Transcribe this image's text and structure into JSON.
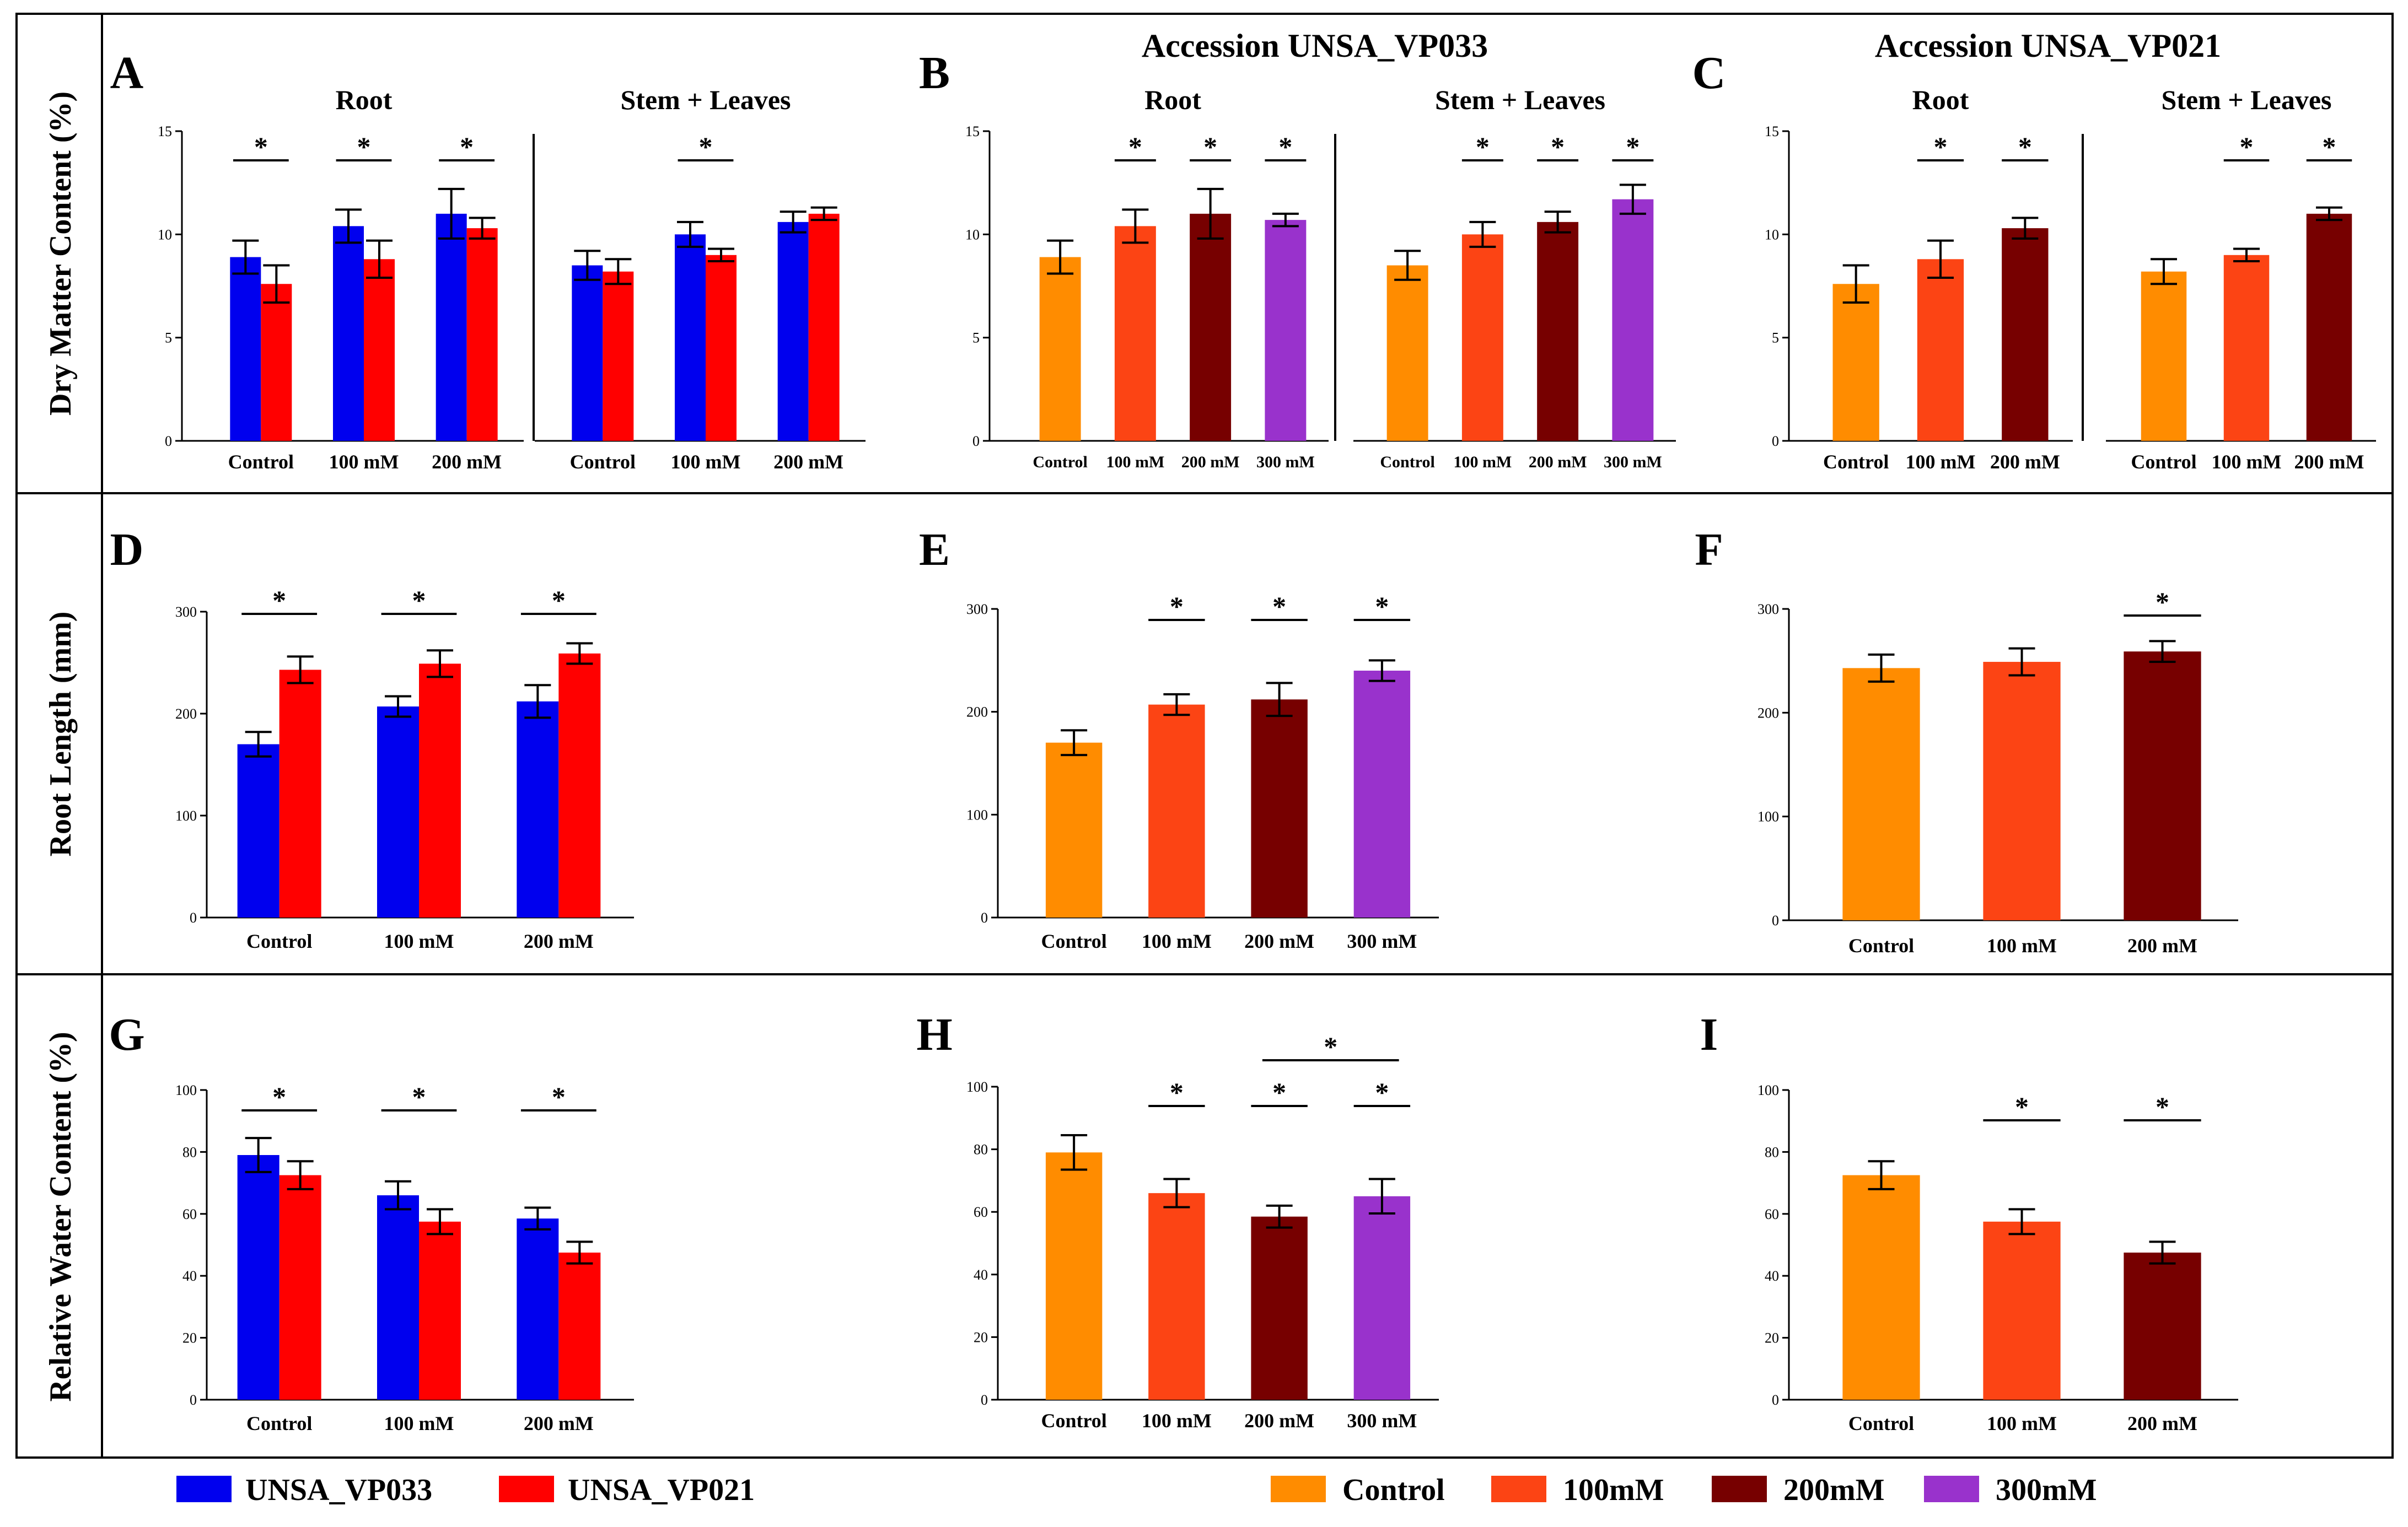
{
  "colors": {
    "UNSA_VP033": "#0000ee",
    "UNSA_VP021": "#ff0000",
    "Control": "#ff8c00",
    "100mM": "#fc4414",
    "200mM": "#770000",
    "300mM": "#9932cc"
  },
  "row_labels": [
    "Dry Matter Content (%)",
    "Root Length (mm)",
    "Relative Water Content (%)"
  ],
  "panel_titles": {
    "B": "Accession UNSA_VP033",
    "C": "Accession UNSA_VP021"
  },
  "legend": {
    "left": [
      {
        "label": "UNSA_VP033",
        "color": "#0000ee"
      },
      {
        "label": "UNSA_VP021",
        "color": "#ff0000"
      }
    ],
    "right": [
      {
        "label": "Control",
        "color": "#ff8c00"
      },
      {
        "label": "100mM",
        "color": "#fc4414"
      },
      {
        "label": "200mM",
        "color": "#770000"
      },
      {
        "label": "300mM",
        "color": "#9932cc"
      }
    ]
  },
  "chart_data": [
    {
      "panel": "A",
      "type": "bar",
      "ylim": [
        0,
        15
      ],
      "yticks": [
        0,
        5,
        10,
        15
      ],
      "groups": [
        {
          "label": "Root",
          "categories": [
            "Control",
            "100 mM",
            "200 mM"
          ],
          "series": [
            {
              "name": "UNSA_VP033",
              "color": "#0000ee",
              "values": [
                8.9,
                10.4,
                11.0
              ],
              "errors": [
                0.8,
                0.8,
                1.2
              ]
            },
            {
              "name": "UNSA_VP021",
              "color": "#ff0000",
              "values": [
                7.6,
                8.8,
                10.3
              ],
              "errors": [
                0.9,
                0.9,
                0.5
              ]
            }
          ],
          "significance": [
            {
              "from": 0,
              "to": 0,
              "label": "*"
            },
            {
              "from": 1,
              "to": 1,
              "label": "*"
            },
            {
              "from": 2,
              "to": 2,
              "label": "*"
            }
          ]
        },
        {
          "label": "Stem + Leaves",
          "categories": [
            "Control",
            "100 mM",
            "200 mM"
          ],
          "series": [
            {
              "name": "UNSA_VP033",
              "color": "#0000ee",
              "values": [
                8.5,
                10.0,
                10.6
              ],
              "errors": [
                0.7,
                0.6,
                0.5
              ]
            },
            {
              "name": "UNSA_VP021",
              "color": "#ff0000",
              "values": [
                8.2,
                9.0,
                11.0
              ],
              "errors": [
                0.6,
                0.3,
                0.3
              ]
            }
          ],
          "significance": [
            {
              "from": 1,
              "to": 1,
              "label": "*"
            }
          ]
        }
      ]
    },
    {
      "panel": "B",
      "type": "bar",
      "ylim": [
        0,
        15
      ],
      "yticks": [
        0,
        5,
        10,
        15
      ],
      "groups": [
        {
          "label": "Root",
          "categories": [
            "Control",
            "100 mM",
            "200 mM",
            "300 mM"
          ],
          "series": [
            {
              "name": "UNSA_VP033",
              "colors": [
                "#ff8c00",
                "#fc4414",
                "#770000",
                "#9932cc"
              ],
              "values": [
                8.9,
                10.4,
                11.0,
                10.7
              ],
              "errors": [
                0.8,
                0.8,
                1.2,
                0.3
              ]
            }
          ],
          "significance": [
            {
              "from": 1,
              "to": 1,
              "label": "*"
            },
            {
              "from": 2,
              "to": 2,
              "label": "*"
            },
            {
              "from": 3,
              "to": 3,
              "label": "*"
            }
          ]
        },
        {
          "label": "Stem + Leaves",
          "categories": [
            "Control",
            "100 mM",
            "200 mM",
            "300 mM"
          ],
          "series": [
            {
              "name": "UNSA_VP033",
              "colors": [
                "#ff8c00",
                "#fc4414",
                "#770000",
                "#9932cc"
              ],
              "values": [
                8.5,
                10.0,
                10.6,
                11.7
              ],
              "errors": [
                0.7,
                0.6,
                0.5,
                0.7
              ]
            }
          ],
          "significance": [
            {
              "from": 1,
              "to": 1,
              "label": "*"
            },
            {
              "from": 2,
              "to": 2,
              "label": "*"
            },
            {
              "from": 3,
              "to": 3,
              "label": "*"
            }
          ]
        }
      ]
    },
    {
      "panel": "C",
      "type": "bar",
      "ylim": [
        0,
        15
      ],
      "yticks": [
        0,
        5,
        10,
        15
      ],
      "groups": [
        {
          "label": "Root",
          "categories": [
            "Control",
            "100 mM",
            "200 mM"
          ],
          "series": [
            {
              "name": "UNSA_VP021",
              "colors": [
                "#ff8c00",
                "#fc4414",
                "#770000"
              ],
              "values": [
                7.6,
                8.8,
                10.3
              ],
              "errors": [
                0.9,
                0.9,
                0.5
              ]
            }
          ],
          "significance": [
            {
              "from": 1,
              "to": 1,
              "label": "*"
            },
            {
              "from": 2,
              "to": 2,
              "label": "*"
            }
          ]
        },
        {
          "label": "Stem + Leaves",
          "categories": [
            "Control",
            "100 mM",
            "200 mM"
          ],
          "series": [
            {
              "name": "UNSA_VP021",
              "colors": [
                "#ff8c00",
                "#fc4414",
                "#770000"
              ],
              "values": [
                8.2,
                9.0,
                11.0
              ],
              "errors": [
                0.6,
                0.3,
                0.3
              ]
            }
          ],
          "significance": [
            {
              "from": 1,
              "to": 1,
              "label": "*"
            },
            {
              "from": 2,
              "to": 2,
              "label": "*"
            }
          ]
        }
      ]
    },
    {
      "panel": "D",
      "type": "bar",
      "ylim": [
        0,
        300
      ],
      "yticks": [
        0,
        100,
        200,
        300
      ],
      "groups": [
        {
          "label": "",
          "categories": [
            "Control",
            "100 mM",
            "200 mM"
          ],
          "series": [
            {
              "name": "UNSA_VP033",
              "color": "#0000ee",
              "values": [
                170,
                207,
                212
              ],
              "errors": [
                12,
                10,
                16
              ]
            },
            {
              "name": "UNSA_VP021",
              "color": "#ff0000",
              "values": [
                243,
                249,
                259
              ],
              "errors": [
                13,
                13,
                10
              ]
            }
          ],
          "significance": [
            {
              "from": 0,
              "to": 0,
              "label": "*"
            },
            {
              "from": 1,
              "to": 1,
              "label": "*"
            },
            {
              "from": 2,
              "to": 2,
              "label": "*"
            }
          ]
        }
      ]
    },
    {
      "panel": "E",
      "type": "bar",
      "ylim": [
        0,
        300
      ],
      "yticks": [
        0,
        100,
        200,
        300
      ],
      "groups": [
        {
          "label": "",
          "categories": [
            "Control",
            "100 mM",
            "200 mM",
            "300 mM"
          ],
          "series": [
            {
              "name": "UNSA_VP033",
              "colors": [
                "#ff8c00",
                "#fc4414",
                "#770000",
                "#9932cc"
              ],
              "values": [
                170,
                207,
                212,
                240
              ],
              "errors": [
                12,
                10,
                16,
                10
              ]
            }
          ],
          "significance": [
            {
              "from": 1,
              "to": 1,
              "label": "*"
            },
            {
              "from": 2,
              "to": 2,
              "label": "*"
            },
            {
              "from": 3,
              "to": 3,
              "label": "*"
            }
          ]
        }
      ]
    },
    {
      "panel": "F",
      "type": "bar",
      "ylim": [
        0,
        300
      ],
      "yticks": [
        0,
        100,
        200,
        300
      ],
      "groups": [
        {
          "label": "",
          "categories": [
            "Control",
            "100 mM",
            "200 mM"
          ],
          "series": [
            {
              "name": "UNSA_VP021",
              "colors": [
                "#ff8c00",
                "#fc4414",
                "#770000"
              ],
              "values": [
                243,
                249,
                259
              ],
              "errors": [
                13,
                13,
                10
              ]
            }
          ],
          "significance": [
            {
              "from": 2,
              "to": 2,
              "label": "*"
            }
          ]
        }
      ]
    },
    {
      "panel": "G",
      "type": "bar",
      "ylim": [
        0,
        100
      ],
      "yticks": [
        0,
        20,
        40,
        60,
        80,
        100
      ],
      "groups": [
        {
          "label": "",
          "categories": [
            "Control",
            "100 mM",
            "200 mM"
          ],
          "series": [
            {
              "name": "UNSA_VP033",
              "color": "#0000ee",
              "values": [
                79,
                66,
                58.5
              ],
              "errors": [
                5.5,
                4.5,
                3.5
              ]
            },
            {
              "name": "UNSA_VP021",
              "color": "#ff0000",
              "values": [
                72.5,
                57.5,
                47.5
              ],
              "errors": [
                4.5,
                4,
                3.5
              ]
            }
          ],
          "significance": [
            {
              "from": 0,
              "to": 0,
              "label": "*"
            },
            {
              "from": 1,
              "to": 1,
              "label": "*"
            },
            {
              "from": 2,
              "to": 2,
              "label": "*"
            }
          ]
        }
      ]
    },
    {
      "panel": "H",
      "type": "bar",
      "ylim": [
        0,
        100
      ],
      "yticks": [
        0,
        20,
        40,
        60,
        80,
        100
      ],
      "groups": [
        {
          "label": "",
          "categories": [
            "Control",
            "100 mM",
            "200 mM",
            "300 mM"
          ],
          "series": [
            {
              "name": "UNSA_VP033",
              "colors": [
                "#ff8c00",
                "#fc4414",
                "#770000",
                "#9932cc"
              ],
              "values": [
                79,
                66,
                58.5,
                65
              ],
              "errors": [
                5.5,
                4.5,
                3.5,
                5.5
              ]
            }
          ],
          "significance": [
            {
              "from": 1,
              "to": 1,
              "label": "*"
            },
            {
              "from": 2,
              "to": 2,
              "label": "*"
            },
            {
              "from": 3,
              "to": 3,
              "label": "*"
            },
            {
              "from": 2,
              "to": 3,
              "label": "*"
            }
          ]
        }
      ]
    },
    {
      "panel": "I",
      "type": "bar",
      "ylim": [
        0,
        100
      ],
      "yticks": [
        0,
        20,
        40,
        60,
        80,
        100
      ],
      "groups": [
        {
          "label": "",
          "categories": [
            "Control",
            "100 mM",
            "200 mM"
          ],
          "series": [
            {
              "name": "UNSA_VP021",
              "colors": [
                "#ff8c00",
                "#fc4414",
                "#770000"
              ],
              "values": [
                72.5,
                57.5,
                47.5
              ],
              "errors": [
                4.5,
                4,
                3.5
              ]
            }
          ],
          "significance": [
            {
              "from": 1,
              "to": 1,
              "label": "*"
            },
            {
              "from": 2,
              "to": 2,
              "label": "*"
            }
          ]
        }
      ]
    }
  ]
}
